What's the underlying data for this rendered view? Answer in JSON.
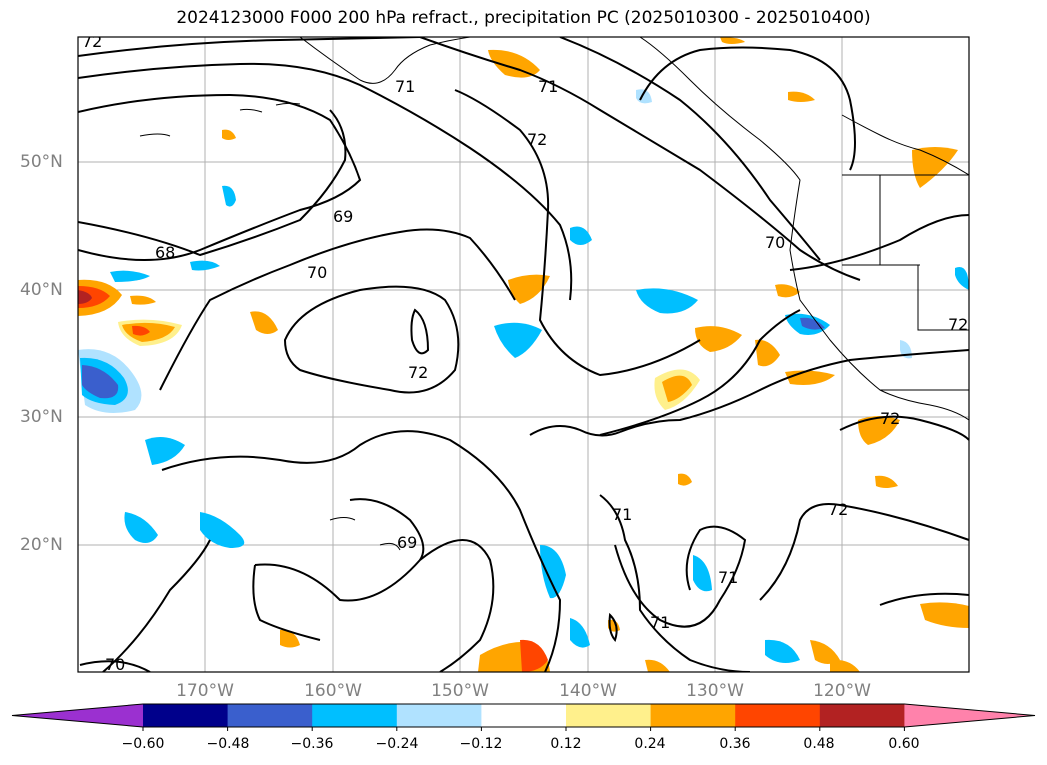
{
  "title": "2024123000 F000 200 hPa refract., precipitation PC (2025010300 - 2025010400)",
  "map": {
    "lat_labels": [
      "50°N",
      "40°N",
      "30°N",
      "20°N"
    ],
    "lon_labels": [
      "170°W",
      "160°W",
      "150°W",
      "140°W",
      "130°W",
      "120°W"
    ],
    "contour_labels": [
      "72",
      "71",
      "72",
      "69",
      "68",
      "70",
      "70",
      "72",
      "71",
      "69",
      "71",
      "72",
      "71",
      "70",
      "72",
      "71",
      "72"
    ]
  },
  "colorbar": {
    "colors": [
      "#9b30d0",
      "#00008b",
      "#3a5fcd",
      "#00bfff",
      "#b0e2ff",
      "#ffffff",
      "#fff08c",
      "#ffa500",
      "#ff4500",
      "#b22222",
      "#ff82ab"
    ],
    "ticks": [
      "−0.60",
      "−0.48",
      "−0.36",
      "−0.24",
      "−0.12",
      "0.12",
      "0.24",
      "0.36",
      "0.48",
      "0.60"
    ]
  }
}
